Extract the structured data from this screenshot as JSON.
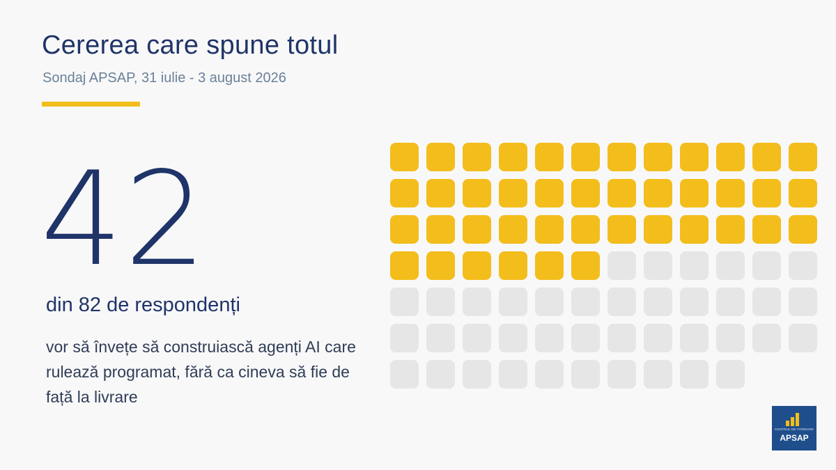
{
  "header": {
    "title": "Cererea care spune totul",
    "subtitle": "Sondaj APSAP, 31 iulie - 3 august 2026"
  },
  "stat": {
    "value": "42",
    "context": "din 82 de respondenți",
    "description": "vor să învețe să construiască agenți AI care rulează programat, fără ca cineva să fie de față la livrare"
  },
  "chart_data": {
    "type": "waffle",
    "total": 82,
    "highlighted": 42,
    "columns": 12,
    "colors": {
      "highlighted": "#f3bd1b",
      "rest": "#e6e6e7"
    }
  },
  "logo": {
    "small_text": "CENTRUL DE FORMARE",
    "name": "APSAP"
  },
  "colors": {
    "primary": "#1f3468",
    "accent": "#f3bd1b",
    "muted": "#6a8197",
    "logo_bg": "#1f4e8c"
  }
}
